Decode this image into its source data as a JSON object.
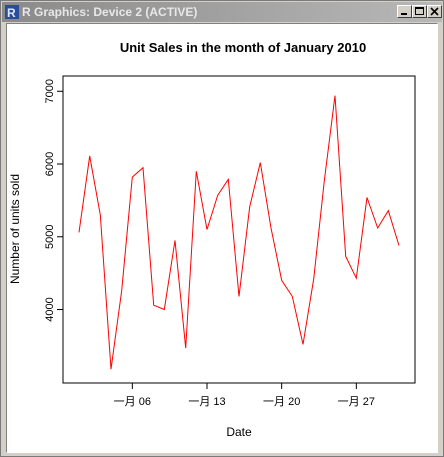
{
  "window": {
    "title": "R Graphics: Device 2 (ACTIVE)",
    "icon": "r-logo-icon",
    "buttons": {
      "minimize": "minimize-icon",
      "maximize": "maximize-icon",
      "close": "close-icon"
    }
  },
  "colors": {
    "series": "#ff0000",
    "axis": "#000000",
    "titlebar_text": "#e8e8e8"
  },
  "chart_data": {
    "type": "line",
    "title": "Unit Sales in the month of January 2010",
    "xlabel": "Date",
    "ylabel": "Number of units sold",
    "x_tick_labels": [
      "一月 06",
      "一月 13",
      "一月 20",
      "一月 27"
    ],
    "x_tick_dates": [
      "2010-01-06",
      "2010-01-13",
      "2010-01-20",
      "2010-01-27"
    ],
    "y_ticks": [
      4000,
      5000,
      6000,
      7000
    ],
    "xlim": [
      "2010-01-01",
      "2010-01-31"
    ],
    "ylim": [
      3100,
      7100
    ],
    "grid": false,
    "legend": "none",
    "series": [
      {
        "x": [
          "2010-01-01",
          "2010-01-02",
          "2010-01-03",
          "2010-01-04",
          "2010-01-05",
          "2010-01-06",
          "2010-01-07",
          "2010-01-08",
          "2010-01-09",
          "2010-01-10",
          "2010-01-11",
          "2010-01-12",
          "2010-01-13",
          "2010-01-14",
          "2010-01-15",
          "2010-01-16",
          "2010-01-17",
          "2010-01-18",
          "2010-01-19",
          "2010-01-20",
          "2010-01-21",
          "2010-01-22",
          "2010-01-23",
          "2010-01-24",
          "2010-01-25",
          "2010-01-26",
          "2010-01-27",
          "2010-01-28",
          "2010-01-29",
          "2010-01-30",
          "2010-01-31"
        ],
        "values": [
          5060,
          6110,
          5300,
          3180,
          4260,
          5820,
          5950,
          4060,
          4000,
          4950,
          3470,
          5900,
          5100,
          5570,
          5790,
          4180,
          5410,
          6020,
          5120,
          4400,
          4180,
          3520,
          4420,
          5770,
          6940,
          4730,
          4430,
          5540,
          5120,
          5360,
          4880
        ]
      }
    ]
  }
}
